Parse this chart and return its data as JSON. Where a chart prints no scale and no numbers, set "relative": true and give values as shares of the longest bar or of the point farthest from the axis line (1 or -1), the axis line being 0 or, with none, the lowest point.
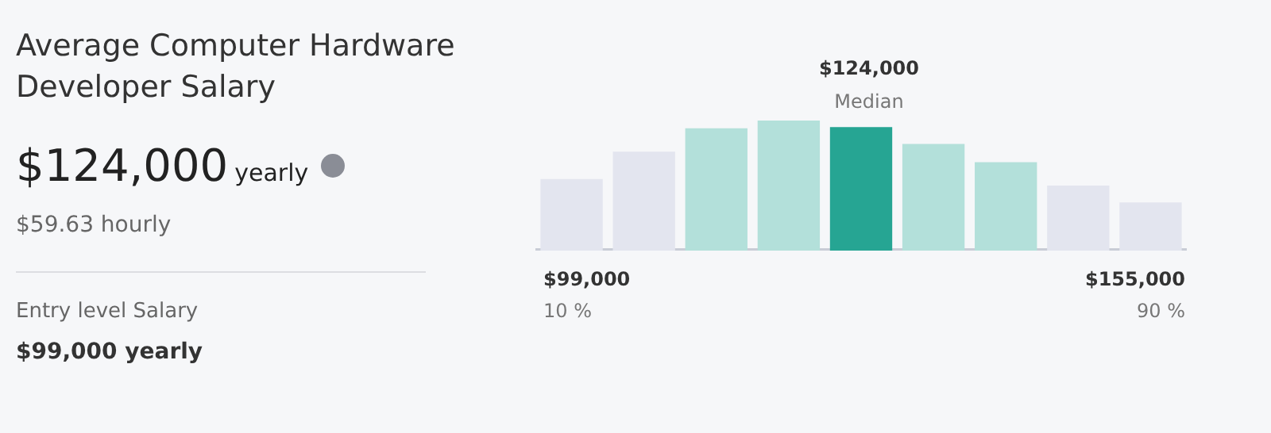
{
  "chart_data": {
    "type": "bar",
    "relative": true,
    "title": "Average Computer Hardware Developer Salary",
    "categories": [
      null,
      null,
      null,
      null,
      null,
      null,
      null,
      null,
      null
    ],
    "values": [
      0.55,
      0.76,
      0.94,
      1,
      0.95,
      0.82,
      0.68,
      0.5,
      0.37
    ],
    "colors": [
      "#e3e5ef",
      "#e3e5ef",
      "#b3e0da",
      "#b3e0da",
      "#26a593",
      "#b3e0da",
      "#b3e0da",
      "#e3e5ef",
      "#e3e5ef"
    ],
    "annotations": [
      "$124,000",
      "yearly",
      "$59.63 hourly",
      "Entry level Salary",
      "$99,000 yearly",
      "$124,000",
      "Median",
      "$99,000",
      "10 %",
      "$155,000",
      "90 %"
    ],
    "legend": false
  }
}
